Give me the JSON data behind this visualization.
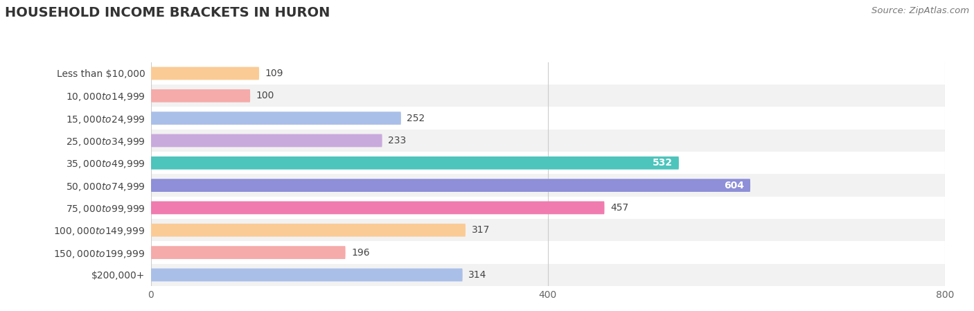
{
  "title": "HOUSEHOLD INCOME BRACKETS IN HURON",
  "source": "Source: ZipAtlas.com",
  "categories": [
    "Less than $10,000",
    "$10,000 to $14,999",
    "$15,000 to $24,999",
    "$25,000 to $34,999",
    "$35,000 to $49,999",
    "$50,000 to $74,999",
    "$75,000 to $99,999",
    "$100,000 to $149,999",
    "$150,000 to $199,999",
    "$200,000+"
  ],
  "values": [
    109,
    100,
    252,
    233,
    532,
    604,
    457,
    317,
    196,
    314
  ],
  "bar_colors": [
    "#FBCB96",
    "#F5ABAA",
    "#AABFE8",
    "#C9AADC",
    "#4DC4BC",
    "#8E8FD8",
    "#F07BAF",
    "#FBCB96",
    "#F5ABAA",
    "#AABFE8"
  ],
  "row_colors": [
    "#FFFFFF",
    "#F2F2F2"
  ],
  "background_color": "#FAFAFA",
  "xlim": [
    0,
    800
  ],
  "xticks": [
    0,
    400,
    800
  ],
  "bar_height": 0.58,
  "title_fontsize": 14,
  "label_fontsize": 10,
  "value_fontsize": 10,
  "source_fontsize": 9.5,
  "tick_fontsize": 10
}
